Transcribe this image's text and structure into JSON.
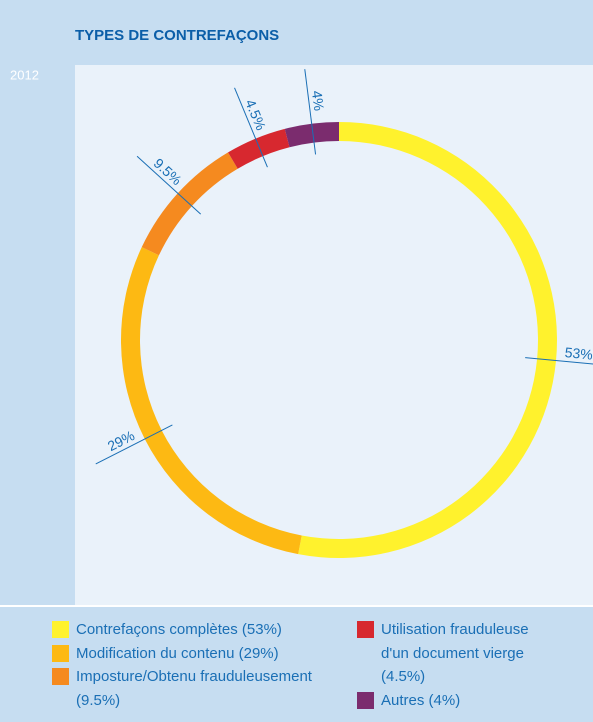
{
  "chart_data": {
    "type": "donut",
    "title": "TYPES DE CONTREFAÇONS",
    "subtitle": "2012",
    "categories": [
      "Contrefaçons complètes (53%)",
      "Modification du contenu (29%)",
      "Imposture/Obtenu frauduleusement (9.5%)",
      "Utilisation frauduleuse d'un document vierge (4.5%)",
      "Autres (4%)"
    ],
    "values": [
      53,
      29,
      9.5,
      4.5,
      4
    ],
    "value_labels": [
      "53%",
      "29%",
      "9.5%",
      "4.5%",
      "4%"
    ],
    "colors": [
      "#fff22d",
      "#fdb913",
      "#f58a1f",
      "#d7282f",
      "#7b2c6e"
    ]
  }
}
